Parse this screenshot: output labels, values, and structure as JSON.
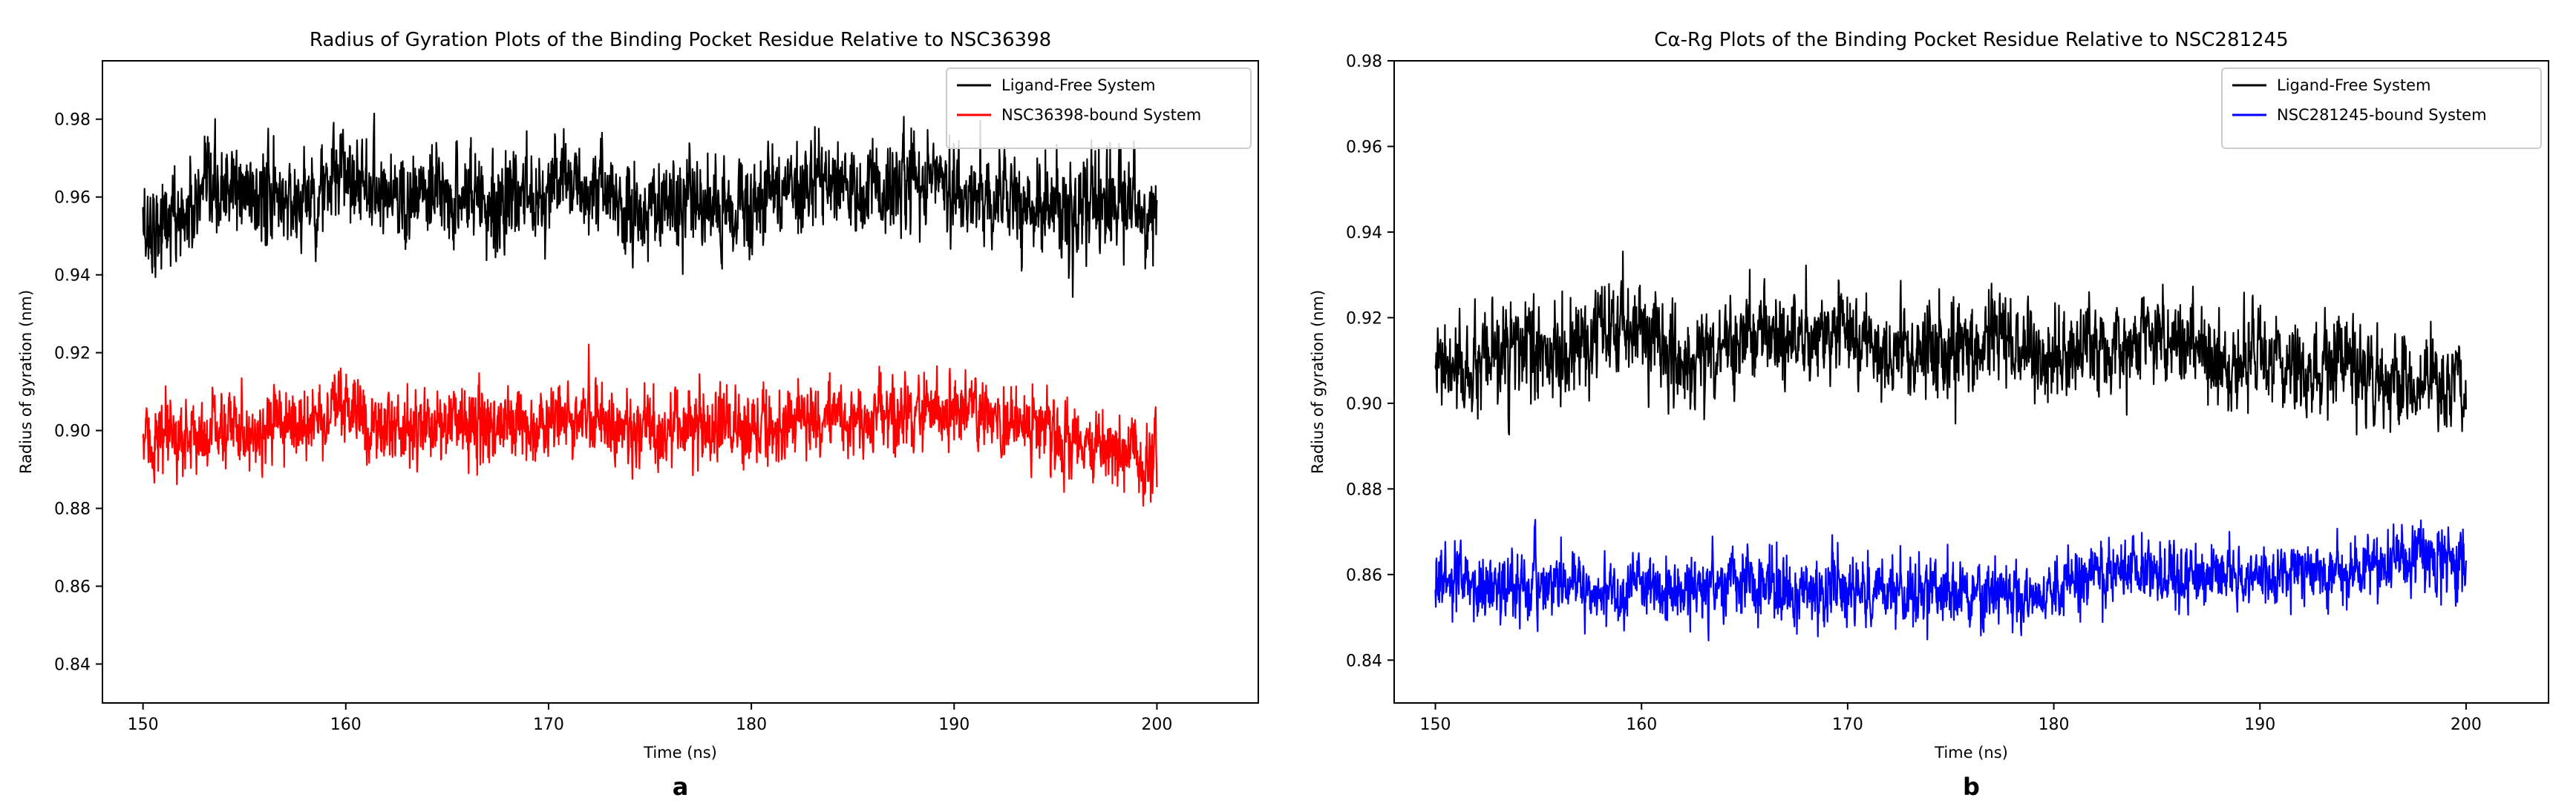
{
  "chart_data": [
    {
      "type": "line",
      "panel_label": "a",
      "title": "Radius of Gyration Plots of the Binding Pocket Residue Relative to NSC36398",
      "xlabel": "Time (ns)",
      "ylabel": "Radius of gyration (nm)",
      "xlim": [
        148,
        205
      ],
      "ylim": [
        0.83,
        0.995
      ],
      "xticks": [
        150,
        160,
        170,
        180,
        190,
        200
      ],
      "yticks": [
        0.84,
        0.86,
        0.88,
        0.9,
        0.92,
        0.94,
        0.96,
        0.98
      ],
      "legend_position": "top-right",
      "grid": false,
      "series": [
        {
          "name": "Ligand-Free System",
          "color": "#000000",
          "noise": 0.009,
          "x": [
            150,
            152,
            154,
            156,
            158,
            160,
            162,
            164,
            166,
            168,
            170,
            172,
            174,
            176,
            178,
            180,
            182,
            184,
            186,
            188,
            190,
            192,
            194,
            196,
            198,
            200
          ],
          "y": [
            0.952,
            0.955,
            0.962,
            0.96,
            0.959,
            0.966,
            0.962,
            0.959,
            0.961,
            0.958,
            0.964,
            0.962,
            0.956,
            0.958,
            0.957,
            0.957,
            0.963,
            0.964,
            0.96,
            0.966,
            0.961,
            0.958,
            0.959,
            0.957,
            0.958,
            0.955
          ]
        },
        {
          "name": "NSC36398-bound System",
          "color": "#ff0000",
          "noise": 0.007,
          "x": [
            150,
            152,
            154,
            156,
            158,
            160,
            162,
            164,
            166,
            168,
            170,
            172,
            174,
            176,
            178,
            180,
            182,
            184,
            186,
            188,
            190,
            192,
            194,
            196,
            198,
            200
          ],
          "y": [
            0.897,
            0.898,
            0.901,
            0.9,
            0.902,
            0.905,
            0.901,
            0.901,
            0.903,
            0.9,
            0.902,
            0.904,
            0.899,
            0.9,
            0.901,
            0.9,
            0.902,
            0.903,
            0.902,
            0.904,
            0.905,
            0.903,
            0.901,
            0.898,
            0.894,
            0.893
          ]
        }
      ]
    },
    {
      "type": "line",
      "panel_label": "b",
      "title": "Cα-Rg Plots of the Binding Pocket Residue Relative to NSC281245",
      "xlabel": "Time (ns)",
      "ylabel": "Radius of gyration (nm)",
      "xlim": [
        148,
        204
      ],
      "ylim": [
        0.83,
        0.98
      ],
      "xticks": [
        150,
        160,
        170,
        180,
        190,
        200
      ],
      "yticks": [
        0.84,
        0.86,
        0.88,
        0.9,
        0.92,
        0.94,
        0.96,
        0.98
      ],
      "legend_position": "top-right",
      "grid": false,
      "series": [
        {
          "name": "Ligand-Free System",
          "color": "#000000",
          "noise": 0.008,
          "x": [
            150,
            152,
            154,
            156,
            158,
            160,
            162,
            164,
            166,
            168,
            170,
            172,
            174,
            176,
            178,
            180,
            182,
            184,
            186,
            188,
            190,
            192,
            194,
            196,
            198,
            200
          ],
          "y": [
            0.908,
            0.907,
            0.913,
            0.91,
            0.915,
            0.919,
            0.908,
            0.914,
            0.917,
            0.914,
            0.918,
            0.91,
            0.912,
            0.913,
            0.915,
            0.909,
            0.913,
            0.914,
            0.916,
            0.909,
            0.911,
            0.907,
            0.91,
            0.905,
            0.906,
            0.903
          ]
        },
        {
          "name": "NSC281245-bound System",
          "color": "#0000ff",
          "noise": 0.0055,
          "x": [
            150,
            152,
            154,
            156,
            158,
            160,
            162,
            164,
            166,
            168,
            170,
            172,
            174,
            176,
            178,
            180,
            182,
            184,
            186,
            188,
            190,
            192,
            194,
            196,
            198,
            200
          ],
          "y": [
            0.859,
            0.857,
            0.857,
            0.858,
            0.856,
            0.857,
            0.856,
            0.858,
            0.857,
            0.856,
            0.857,
            0.855,
            0.856,
            0.856,
            0.855,
            0.855,
            0.86,
            0.86,
            0.86,
            0.859,
            0.86,
            0.861,
            0.861,
            0.863,
            0.864,
            0.865
          ]
        }
      ]
    }
  ]
}
